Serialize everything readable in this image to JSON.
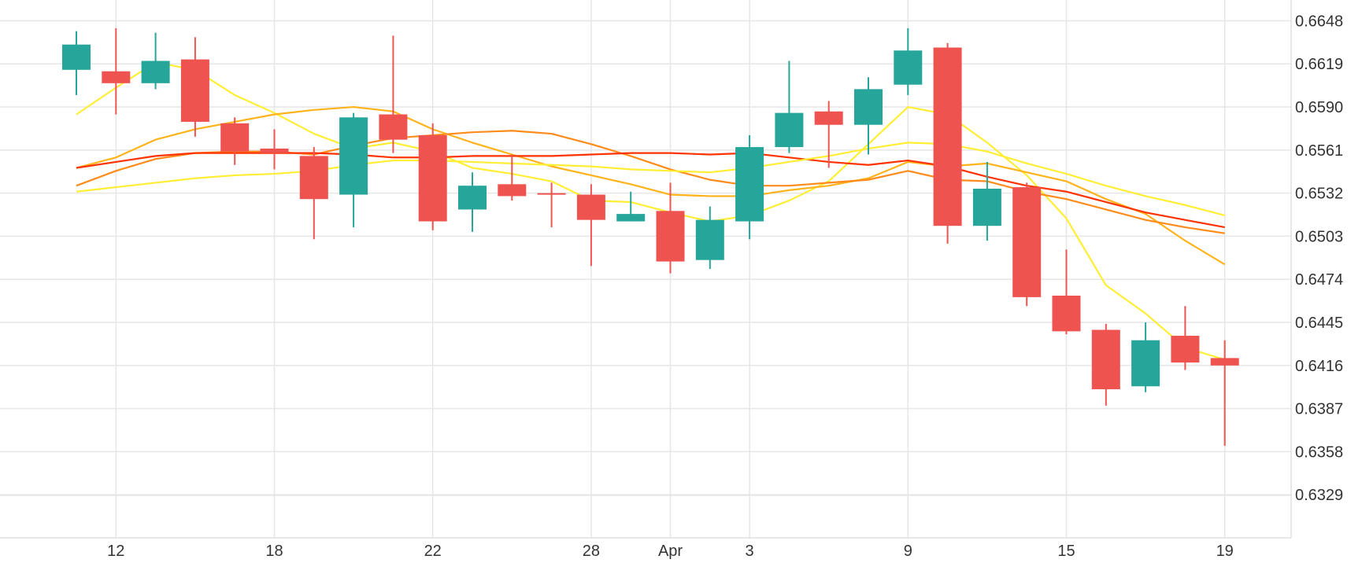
{
  "chart_data": {
    "type": "candlestick",
    "title": "",
    "xlabel": "",
    "ylabel": "",
    "grid": true,
    "legend": "none",
    "colors": {
      "up": "#26a69a",
      "down": "#ef5350",
      "ma": [
        "#ffee33",
        "#ffb31a",
        "#ff8c1a",
        "#ff3300"
      ]
    },
    "y_ticks": [
      "0.6648",
      "0.6619",
      "0.6590",
      "0.6561",
      "0.6532",
      "0.6503",
      "0.6474",
      "0.6445",
      "0.6416",
      "0.6387",
      "0.6358",
      "0.6329"
    ],
    "ylim": [
      0.63,
      0.6662
    ],
    "x_ticks": [
      {
        "i": 1,
        "label": "12"
      },
      {
        "i": 5,
        "label": "18"
      },
      {
        "i": 9,
        "label": "22"
      },
      {
        "i": 13,
        "label": "28"
      },
      {
        "i": 15,
        "label": "Apr"
      },
      {
        "i": 17,
        "label": "3"
      },
      {
        "i": 21,
        "label": "9"
      },
      {
        "i": 25,
        "label": "15"
      },
      {
        "i": 29,
        "label": "19"
      }
    ],
    "candles": [
      {
        "o": 0.6615,
        "h": 0.6641,
        "l": 0.6598,
        "c": 0.6632
      },
      {
        "o": 0.6614,
        "h": 0.6643,
        "l": 0.6585,
        "c": 0.6606
      },
      {
        "o": 0.6606,
        "h": 0.664,
        "l": 0.6602,
        "c": 0.6621
      },
      {
        "o": 0.6622,
        "h": 0.6637,
        "l": 0.657,
        "c": 0.658
      },
      {
        "o": 0.6579,
        "h": 0.6583,
        "l": 0.6551,
        "c": 0.656
      },
      {
        "o": 0.6562,
        "h": 0.6575,
        "l": 0.6548,
        "c": 0.6559
      },
      {
        "o": 0.6557,
        "h": 0.6563,
        "l": 0.6501,
        "c": 0.6528
      },
      {
        "o": 0.6531,
        "h": 0.6586,
        "l": 0.6509,
        "c": 0.6583
      },
      {
        "o": 0.6585,
        "h": 0.6638,
        "l": 0.6559,
        "c": 0.6568
      },
      {
        "o": 0.6571,
        "h": 0.6579,
        "l": 0.6507,
        "c": 0.6513
      },
      {
        "o": 0.6521,
        "h": 0.6546,
        "l": 0.6506,
        "c": 0.6537
      },
      {
        "o": 0.6538,
        "h": 0.6558,
        "l": 0.6527,
        "c": 0.653
      },
      {
        "o": 0.6532,
        "h": 0.6539,
        "l": 0.6509,
        "c": 0.6531
      },
      {
        "o": 0.6531,
        "h": 0.6538,
        "l": 0.6483,
        "c": 0.6514
      },
      {
        "o": 0.6513,
        "h": 0.6533,
        "l": 0.6513,
        "c": 0.6518
      },
      {
        "o": 0.652,
        "h": 0.6539,
        "l": 0.6478,
        "c": 0.6486
      },
      {
        "o": 0.6487,
        "h": 0.6523,
        "l": 0.6481,
        "c": 0.6514
      },
      {
        "o": 0.6513,
        "h": 0.6571,
        "l": 0.6501,
        "c": 0.6563
      },
      {
        "o": 0.6563,
        "h": 0.6621,
        "l": 0.6559,
        "c": 0.6586
      },
      {
        "o": 0.6587,
        "h": 0.6594,
        "l": 0.6549,
        "c": 0.6578
      },
      {
        "o": 0.6578,
        "h": 0.661,
        "l": 0.6558,
        "c": 0.6602
      },
      {
        "o": 0.6605,
        "h": 0.6643,
        "l": 0.6598,
        "c": 0.6628
      },
      {
        "o": 0.663,
        "h": 0.6633,
        "l": 0.6498,
        "c": 0.651
      },
      {
        "o": 0.651,
        "h": 0.6553,
        "l": 0.65,
        "c": 0.6535
      },
      {
        "o": 0.6536,
        "h": 0.6539,
        "l": 0.6456,
        "c": 0.6462
      },
      {
        "o": 0.6463,
        "h": 0.6494,
        "l": 0.6437,
        "c": 0.6439
      },
      {
        "o": 0.644,
        "h": 0.6444,
        "l": 0.6389,
        "c": 0.64
      },
      {
        "o": 0.6402,
        "h": 0.6445,
        "l": 0.6398,
        "c": 0.6433
      },
      {
        "o": 0.6436,
        "h": 0.6456,
        "l": 0.6413,
        "c": 0.6418
      },
      {
        "o": 0.6421,
        "h": 0.6433,
        "l": 0.6362,
        "c": 0.6416
      }
    ],
    "moving_averages": [
      {
        "values": [
          0.6585,
          0.6603,
          0.662,
          0.6615,
          0.6598,
          0.6586,
          0.6572,
          0.6562,
          0.6566,
          0.656,
          0.6549,
          0.6545,
          0.654,
          0.6527,
          0.6526,
          0.6519,
          0.6513,
          0.6517,
          0.6527,
          0.654,
          0.6565,
          0.659,
          0.6585,
          0.6566,
          0.6544,
          0.6515,
          0.647,
          0.6451,
          0.6428,
          0.642
        ]
      },
      {
        "values": [
          0.6549,
          0.6556,
          0.6568,
          0.6575,
          0.658,
          0.6585,
          0.6588,
          0.659,
          0.6587,
          0.6575,
          0.6566,
          0.6558,
          0.655,
          0.6544,
          0.6538,
          0.6531,
          0.653,
          0.653,
          0.6534,
          0.6537,
          0.6542,
          0.6553,
          0.655,
          0.6552,
          0.6546,
          0.654,
          0.6528,
          0.6518,
          0.65,
          0.6484
        ]
      },
      {
        "values": [
          0.6537,
          0.6547,
          0.6555,
          0.6559,
          0.656,
          0.656,
          0.6558,
          0.6564,
          0.6569,
          0.6571,
          0.6573,
          0.6574,
          0.6572,
          0.6565,
          0.6557,
          0.6548,
          0.6541,
          0.6537,
          0.6537,
          0.6539,
          0.6541,
          0.6547,
          0.6541,
          0.654,
          0.6533,
          0.6528,
          0.6521,
          0.6514,
          0.6509,
          0.6505
        ]
      },
      {
        "values": [
          0.6549,
          0.6553,
          0.6557,
          0.6559,
          0.6559,
          0.6559,
          0.6559,
          0.6558,
          0.6556,
          0.6556,
          0.6557,
          0.6557,
          0.6557,
          0.6558,
          0.6559,
          0.6559,
          0.6558,
          0.6559,
          0.6556,
          0.6553,
          0.6551,
          0.6554,
          0.655,
          0.6543,
          0.6537,
          0.6533,
          0.6526,
          0.6519,
          0.6514,
          0.6509
        ]
      },
      {
        "values": [
          0.6533,
          0.6536,
          0.6539,
          0.6542,
          0.6544,
          0.6545,
          0.6547,
          0.6551,
          0.6554,
          0.6554,
          0.6553,
          0.6552,
          0.6551,
          0.655,
          0.6548,
          0.6547,
          0.6546,
          0.6549,
          0.6553,
          0.6557,
          0.6562,
          0.6566,
          0.6565,
          0.656,
          0.6552,
          0.6545,
          0.6537,
          0.653,
          0.6524,
          0.6517
        ]
      }
    ]
  }
}
